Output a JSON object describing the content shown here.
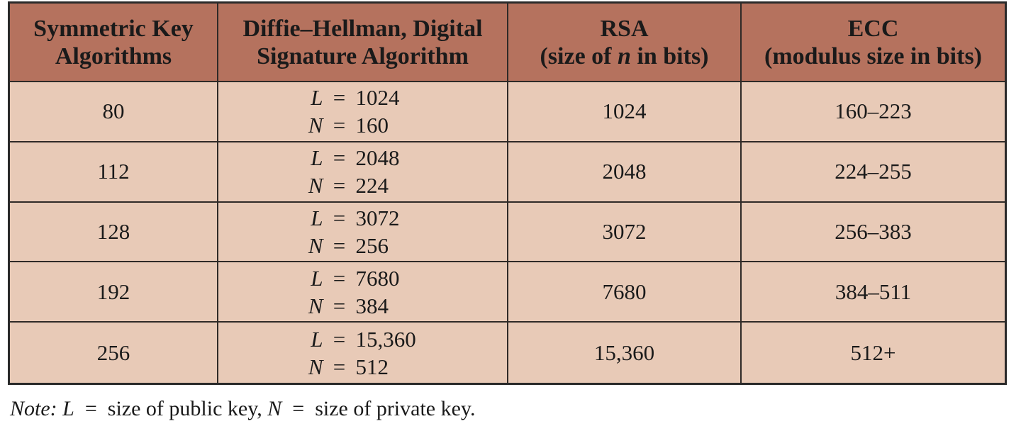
{
  "table": {
    "headers": [
      {
        "line1": "Symmetric Key",
        "line2": "Algorithms"
      },
      {
        "line1": "Diffie–Hellman, Digital",
        "line2": "Signature Algorithm"
      },
      {
        "line1": "RSA",
        "line2_pre": "(size of ",
        "line2_var": "n",
        "line2_post": " in bits)"
      },
      {
        "line1": "ECC",
        "line2": "(modulus size in bits)"
      }
    ],
    "rows": [
      {
        "symmetric": "80",
        "dh_L": "1024",
        "dh_N": "160",
        "rsa": "1024",
        "ecc": "160–223"
      },
      {
        "symmetric": "112",
        "dh_L": "2048",
        "dh_N": "224",
        "rsa": "2048",
        "ecc": "224–255"
      },
      {
        "symmetric": "128",
        "dh_L": "3072",
        "dh_N": "256",
        "rsa": "3072",
        "ecc": "256–383"
      },
      {
        "symmetric": "192",
        "dh_L": "7680",
        "dh_N": "384",
        "rsa": "7680",
        "ecc": "384–511"
      },
      {
        "symmetric": "256",
        "dh_L": "15,360",
        "dh_N": "512",
        "rsa": "15,360",
        "ecc": "512+"
      }
    ],
    "dh_var_L": "L",
    "dh_var_N": "N",
    "equals": "="
  },
  "note": {
    "label": "Note:",
    "var_L": "L",
    "eq": "=",
    "text_L": "size of public key,",
    "var_N": "N",
    "text_N": "size of private key."
  },
  "colors": {
    "header_bg": "#b5725e",
    "body_bg": "#e8cab7",
    "border": "#2a2a2a"
  }
}
